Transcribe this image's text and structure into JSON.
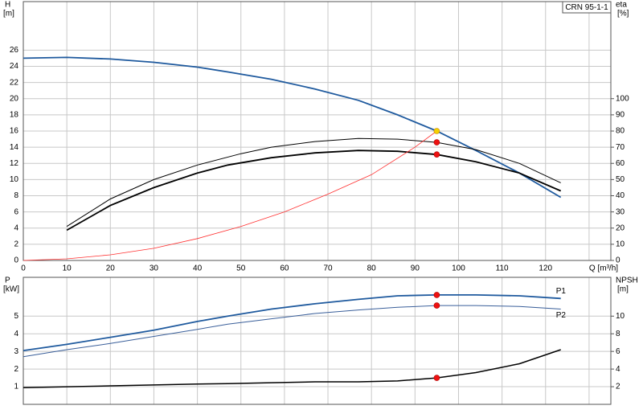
{
  "chart_data": [
    {
      "type": "line",
      "title": "CRN 95-1-1",
      "ylabel": "H",
      "yunit": "[m]",
      "y2label": "eta",
      "y2unit": "[%]",
      "xlim": [
        0,
        135
      ],
      "xticks": [
        0,
        10,
        20,
        30,
        40,
        50,
        60,
        70,
        80,
        90,
        100,
        110,
        120,
        {
          "value": 130,
          "label": "Q [m³/h]"
        }
      ],
      "xtick_labels": true,
      "ylim": [
        0,
        32
      ],
      "yticks": [
        0,
        2,
        4,
        6,
        8,
        10,
        12,
        14,
        16,
        18,
        20,
        22,
        24,
        26
      ],
      "y2lim": [
        0,
        160
      ],
      "y2ticks": [
        0,
        10,
        20,
        30,
        40,
        50,
        60,
        70,
        80,
        90,
        100
      ],
      "grid": true,
      "series": [
        {
          "color": "#1f5a9e",
          "width": 1.8,
          "x": [
            0,
            10,
            20,
            30,
            40,
            47,
            57,
            67,
            77,
            86,
            95,
            104,
            114,
            123.5
          ],
          "values": [
            25,
            25.1,
            24.9,
            24.5,
            23.9,
            23.3,
            22.4,
            21.2,
            19.8,
            18,
            16,
            13.6,
            10.8,
            7.8
          ]
        },
        {
          "color": "#000000",
          "width": 1,
          "axis": "y2",
          "x": [
            10,
            20,
            30,
            40,
            50,
            57,
            67,
            77,
            86,
            95,
            104,
            114,
            123.5
          ],
          "values": [
            21,
            38,
            50,
            59,
            66,
            70,
            73.5,
            75.4,
            75,
            73,
            68.5,
            60,
            48
          ]
        },
        {
          "color": "#000000",
          "width": 1.8,
          "axis": "y2",
          "x": [
            10,
            20,
            30,
            40,
            47,
            57,
            67,
            77,
            86,
            95,
            104,
            114,
            123.5
          ],
          "values": [
            18.7,
            34,
            45,
            54,
            59,
            63.5,
            66.5,
            68,
            67.5,
            65.5,
            61,
            54,
            43
          ]
        },
        {
          "color": "#ff3030",
          "width": 0.8,
          "x": [
            0,
            10,
            20,
            30,
            40,
            50,
            60,
            70,
            80,
            90,
            95
          ],
          "values": [
            0,
            0.2,
            0.7,
            1.5,
            2.7,
            4.2,
            6,
            8.2,
            10.6,
            14,
            16
          ]
        }
      ],
      "points": [
        {
          "x": 95,
          "y": 16,
          "color": "#f5d000"
        },
        {
          "x": 95,
          "y": 73,
          "axis": "y2",
          "color": "#ee1111"
        },
        {
          "x": 95,
          "y": 65.5,
          "axis": "y2",
          "color": "#ee1111"
        }
      ]
    },
    {
      "type": "line",
      "ylabel": "P",
      "yunit": "[kW]",
      "y2label": "NPSH",
      "y2unit": "[m]",
      "xlim": [
        0,
        135
      ],
      "xticks": [
        0,
        10,
        20,
        30,
        40,
        50,
        60,
        70,
        80,
        90,
        100,
        110,
        120,
        130
      ],
      "xtick_labels": false,
      "ylim": [
        0,
        7.2
      ],
      "yticks": [
        1,
        2,
        3,
        4,
        5
      ],
      "y2lim": [
        0,
        14.4
      ],
      "y2ticks": [
        2,
        4,
        6,
        8,
        10
      ],
      "grid": true,
      "series": [
        {
          "name": "P1",
          "color": "#1f5a9e",
          "width": 1.8,
          "x": [
            0,
            10,
            20,
            30,
            40,
            47,
            57,
            67,
            77,
            86,
            95,
            104,
            114,
            123.5
          ],
          "values": [
            3.05,
            3.4,
            3.8,
            4.2,
            4.7,
            5.0,
            5.4,
            5.7,
            5.95,
            6.15,
            6.2,
            6.2,
            6.15,
            6.0
          ]
        },
        {
          "name": "P2",
          "color": "#3a5f9a",
          "width": 1,
          "x": [
            0,
            10,
            20,
            30,
            40,
            47,
            57,
            67,
            77,
            86,
            95,
            104,
            114,
            123.5
          ],
          "values": [
            2.7,
            3.1,
            3.45,
            3.85,
            4.25,
            4.55,
            4.85,
            5.15,
            5.35,
            5.5,
            5.6,
            5.6,
            5.55,
            5.4
          ]
        },
        {
          "color": "#000000",
          "width": 1.5,
          "axis": "y2",
          "x": [
            0,
            20,
            40,
            47,
            57,
            67,
            77,
            86,
            95,
            104,
            114,
            123.5
          ],
          "values": [
            1.9,
            2.1,
            2.3,
            2.35,
            2.45,
            2.55,
            2.55,
            2.65,
            3.0,
            3.6,
            4.6,
            6.2
          ]
        }
      ],
      "points": [
        {
          "x": 95,
          "y": 6.2,
          "color": "#ee1111"
        },
        {
          "x": 95,
          "y": 5.6,
          "color": "#ee1111"
        },
        {
          "x": 95,
          "y": 3.0,
          "axis": "y2",
          "color": "#ee1111"
        }
      ]
    }
  ]
}
